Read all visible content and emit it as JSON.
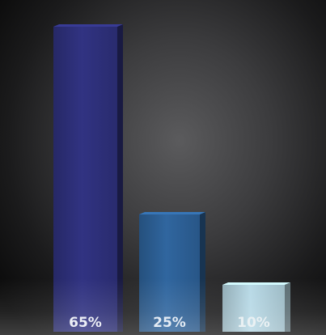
{
  "chart_data": {
    "type": "bar",
    "categories": [
      "",
      "",
      ""
    ],
    "values": [
      65,
      25,
      10
    ],
    "value_labels": [
      "65%",
      "25%",
      "10%"
    ],
    "ylim": [
      0,
      65
    ],
    "grid": false,
    "legend": "none",
    "colors": [
      "#2d2f78",
      "#2c5e93",
      "#a9c9d5"
    ],
    "label_colors": [
      "#e9ecf4",
      "#dfe8f2",
      "#e6eef1"
    ]
  }
}
